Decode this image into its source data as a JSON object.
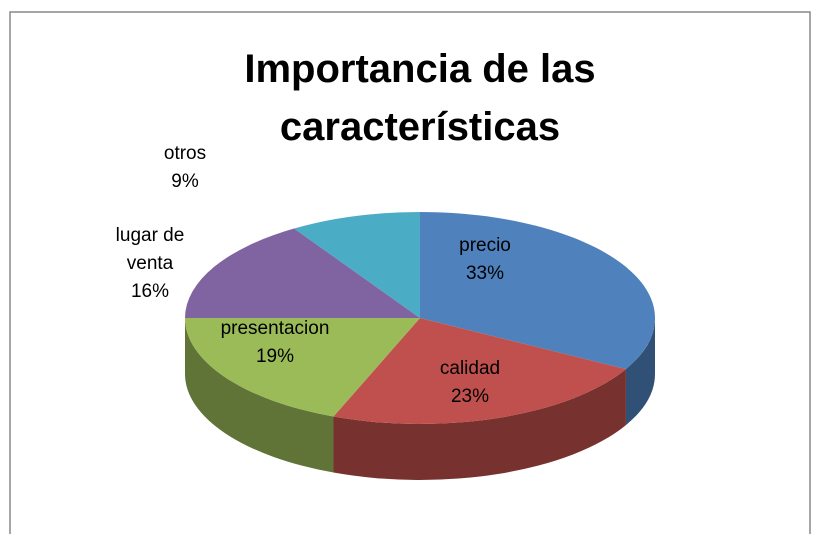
{
  "chart_data": {
    "type": "pie",
    "title": "Importancia de las características",
    "categories": [
      "precio",
      "calidad",
      "presentacion",
      "lugar de venta",
      "otros"
    ],
    "values": [
      33,
      23,
      19,
      16,
      9
    ],
    "value_labels": [
      "33%",
      "23%",
      "19%",
      "16%",
      "9%"
    ],
    "colors": [
      "#4f81bd",
      "#c0504d",
      "#9bbb59",
      "#8064a2",
      "#4bacc6"
    ]
  }
}
